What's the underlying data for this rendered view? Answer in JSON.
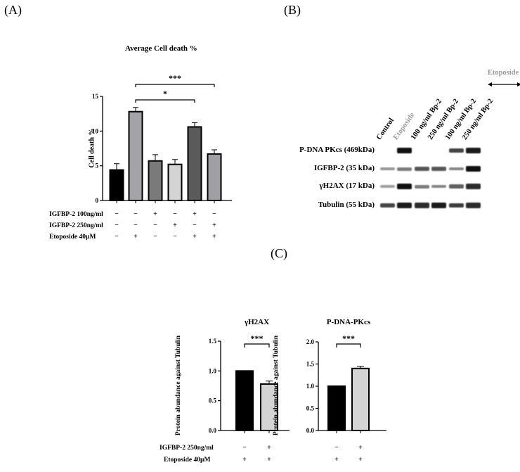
{
  "panels": {
    "a": {
      "label": "(A)"
    },
    "b": {
      "label": "(B)"
    },
    "c": {
      "label": "(C)"
    }
  },
  "chart_data": [
    {
      "id": "A",
      "type": "bar",
      "title": "Average Cell death %",
      "xlabel": "",
      "ylabel": "Cell death %",
      "ylim": [
        0,
        15
      ],
      "yticks": [
        "0",
        "5",
        "10",
        "15"
      ],
      "grid": false,
      "categories": [
        "Control",
        "Etoposide",
        "IGFBP-2 100",
        "IGFBP-2 250",
        "IGFBP-2 100 + Etoposide",
        "IGFBP-2 250 + Etoposide"
      ],
      "values": [
        4.4,
        12.8,
        5.7,
        5.2,
        10.6,
        6.7
      ],
      "errors": [
        0.9,
        0.6,
        0.9,
        0.7,
        0.6,
        0.6
      ],
      "colors": [
        "#000000",
        "#a3a3a8",
        "#7a7a7a",
        "#d4d4d4",
        "#5a5a5a",
        "#a0a0a4"
      ],
      "annotations": [
        {
          "text": "*",
          "from": 1,
          "to": 4
        },
        {
          "text": "***",
          "from": 1,
          "to": 5
        }
      ],
      "condition_table": [
        {
          "label": "IGFBP-2 100ng/ml",
          "values": [
            "−",
            "−",
            "+",
            "−",
            "+",
            "−"
          ]
        },
        {
          "label": "IGFBP-2 250ng/ml",
          "values": [
            "−",
            "−",
            "−",
            "+",
            "−",
            "+"
          ]
        },
        {
          "label": "Etoposide 40µM",
          "values": [
            "−",
            "+",
            "−",
            "−",
            "+",
            "+"
          ]
        }
      ]
    },
    {
      "id": "C1",
      "type": "bar",
      "title": "γH2AX",
      "xlabel": "",
      "ylabel": "Protein abundance against Tubulin",
      "ylim": [
        0,
        1.5
      ],
      "yticks": [
        "0.0",
        "0.5",
        "1.0",
        "1.5"
      ],
      "grid": false,
      "categories": [
        "Etoposide",
        "IGFBP-2 250 + Etoposide"
      ],
      "values": [
        1.0,
        0.78
      ],
      "errors": [
        0,
        0.05
      ],
      "colors": [
        "#000000",
        "#d4d4d4"
      ],
      "annotations": [
        {
          "text": "***",
          "from": 0,
          "to": 1
        }
      ]
    },
    {
      "id": "C2",
      "type": "bar",
      "title": "P-DNA-PKcs",
      "xlabel": "",
      "ylabel": "Protein abundance against Tubulin",
      "ylim": [
        0,
        2.0
      ],
      "yticks": [
        "0.0",
        "0.5",
        "1.0",
        "1.5",
        "2.0"
      ],
      "grid": false,
      "categories": [
        "Etoposide",
        "IGFBP-2 250 + Etoposide"
      ],
      "values": [
        1.0,
        1.4
      ],
      "errors": [
        0,
        0.05
      ],
      "colors": [
        "#000000",
        "#d4d4d4"
      ],
      "annotations": [
        {
          "text": "***",
          "from": 0,
          "to": 1
        }
      ]
    }
  ],
  "panel_c_table": [
    {
      "label": "IGFBP-2 250ng/ml",
      "c1": [
        "−",
        "+"
      ],
      "c2": [
        "−",
        "+"
      ]
    },
    {
      "label": "Etoposide 40µM",
      "c1": [
        "+",
        "+"
      ],
      "c2": [
        "+",
        "+"
      ]
    }
  ],
  "western_blot": {
    "lanes": [
      "Control",
      "Etoposide",
      "100 ng/ml Bp-2",
      "250 ng/ml Bp-2",
      "100 ng/ml Bp-2",
      "250 ng/ml Bp-2"
    ],
    "bracket_label": "Etoposide",
    "proteins": [
      {
        "name": "P-DNA PKcs (469kDa)",
        "intensity": [
          0,
          1.0,
          0,
          0,
          0.7,
          0.95
        ]
      },
      {
        "name": "IGFBP-2 (35 kDa)",
        "intensity": [
          0.25,
          0.4,
          0.6,
          0.6,
          0.35,
          1.0
        ]
      },
      {
        "name": "γH2AX (17 kDa)",
        "intensity": [
          0.2,
          1.0,
          0.4,
          0.35,
          0.55,
          0.85
        ]
      },
      {
        "name": "Tubulin (55 kDa)",
        "intensity": [
          0.7,
          0.95,
          0.85,
          0.95,
          0.75,
          0.85
        ]
      }
    ],
    "colors": {
      "etoposide_label": "#9a9a9a",
      "band": "#111111"
    }
  }
}
